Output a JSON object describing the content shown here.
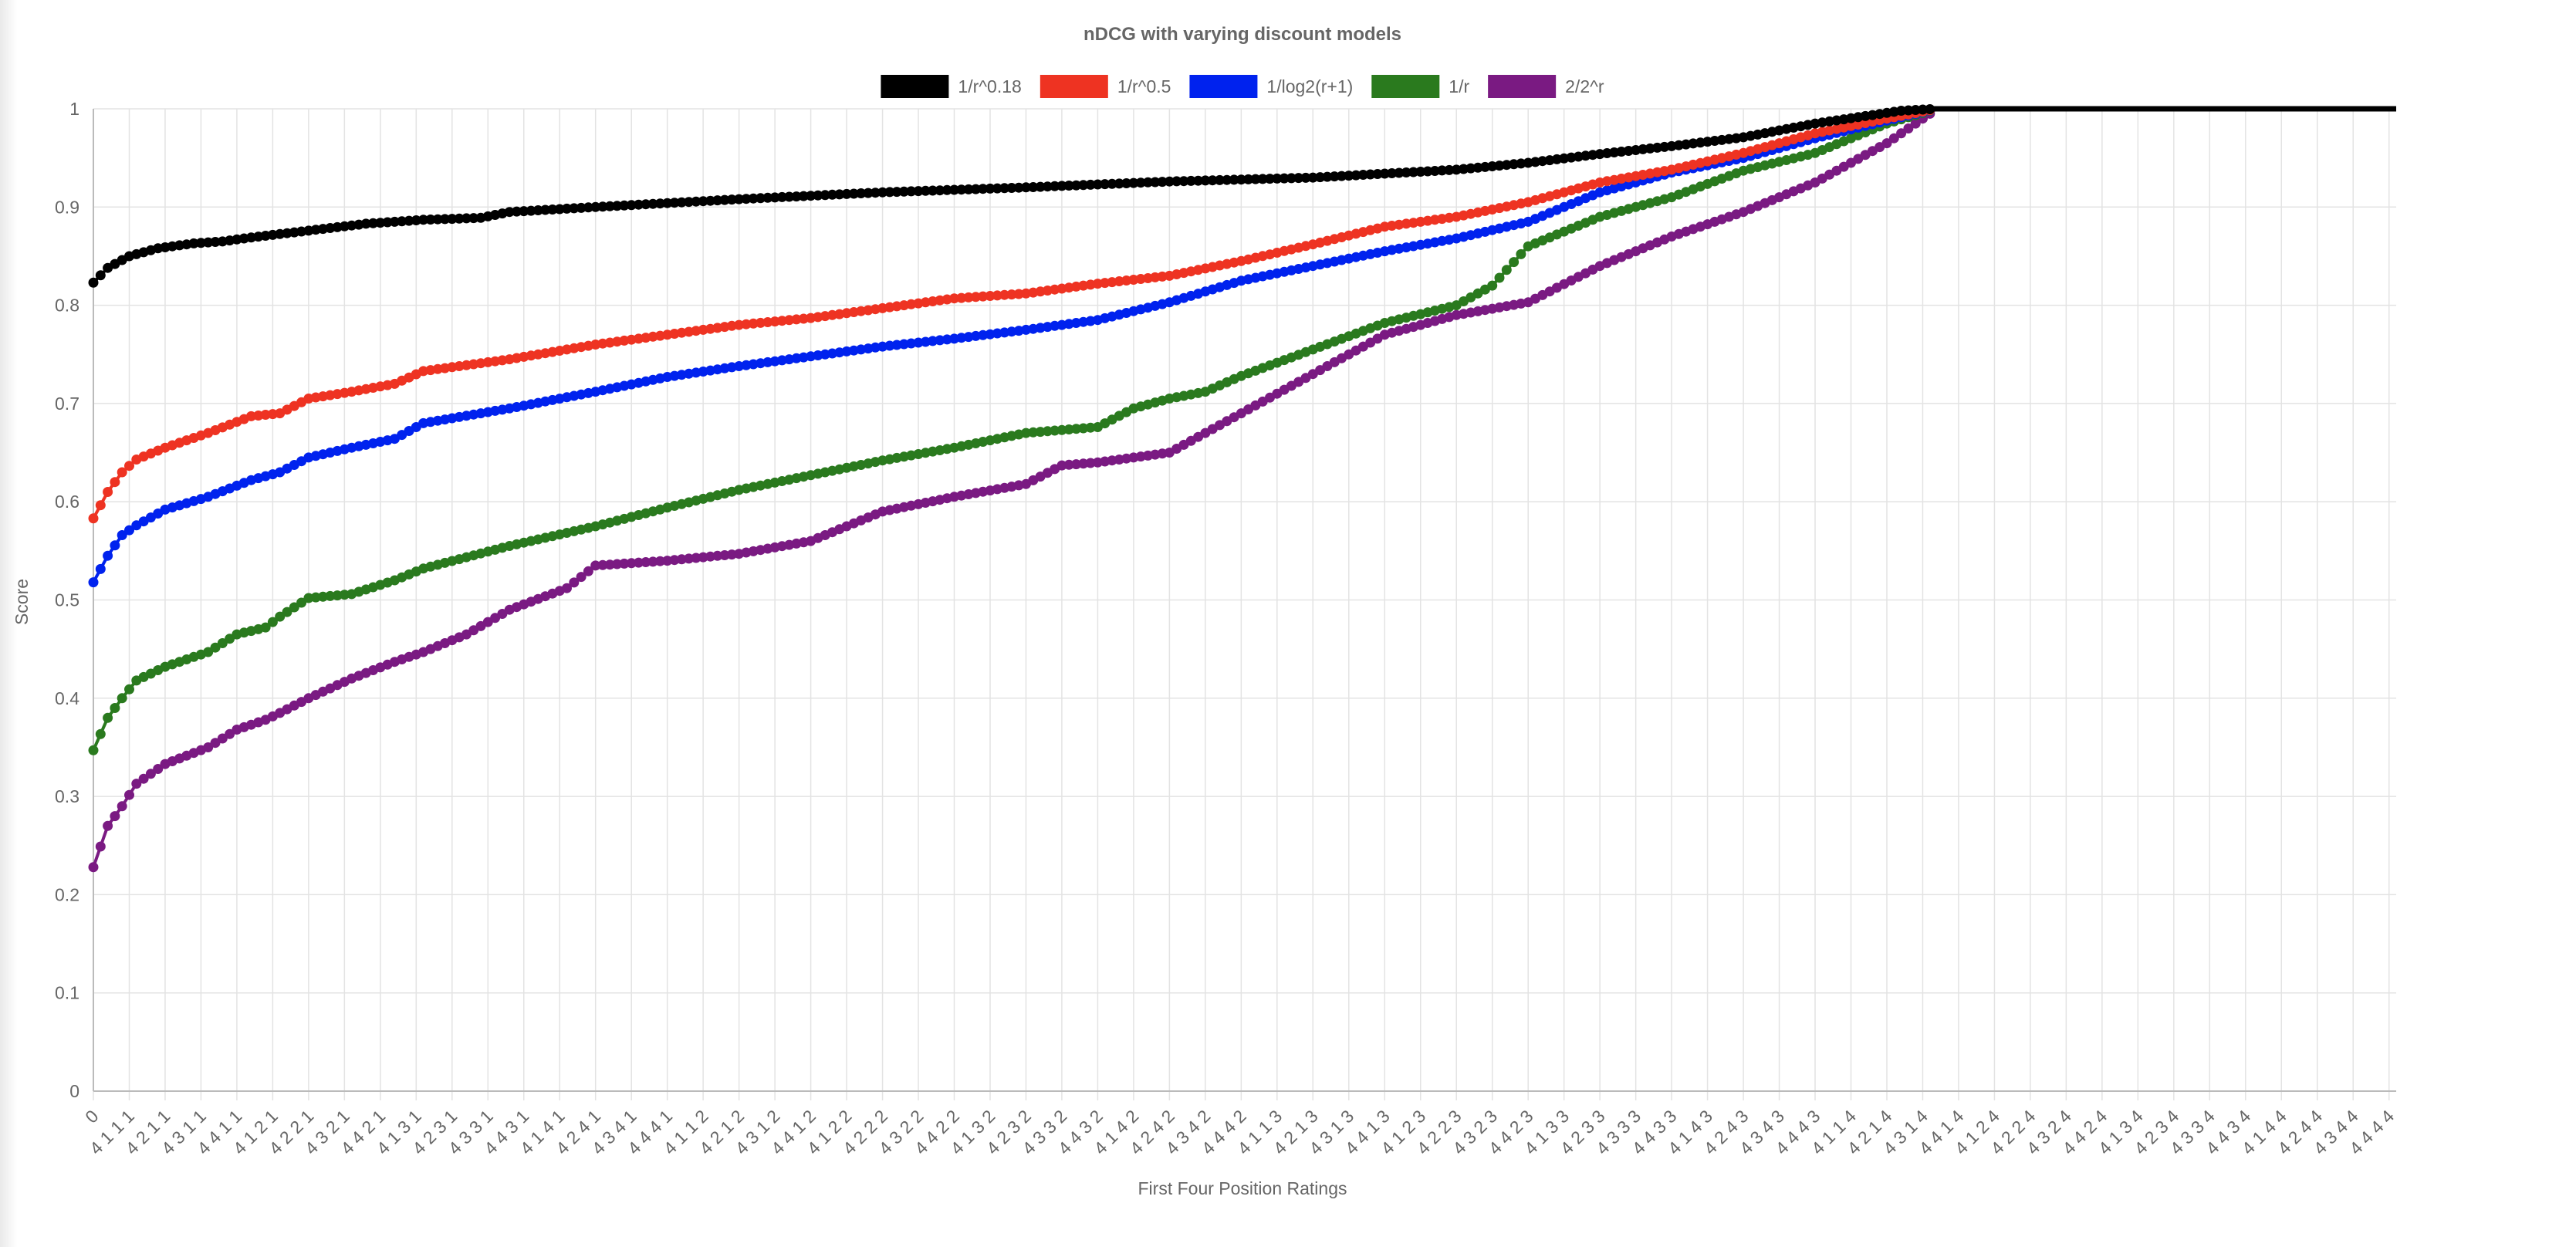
{
  "chart_data": {
    "type": "line",
    "title": "nDCG with varying discount models",
    "xlabel": "First Four Position Ratings",
    "ylabel": "Score",
    "ylim": [
      0,
      1
    ],
    "yticks": [
      "0",
      "0.1",
      "0.2",
      "0.3",
      "0.4",
      "0.5",
      "0.6",
      "0.7",
      "0.8",
      "0.9",
      "1"
    ],
    "x_tick_labels": [
      "0",
      "4 1 1 1",
      "4 2 1 1",
      "4 3 1 1",
      "4 4 1 1",
      "4 1 2 1",
      "4 2 2 1",
      "4 3 2 1",
      "4 4 2 1",
      "4 1 3 1",
      "4 2 3 1",
      "4 3 3 1",
      "4 4 3 1",
      "4 1 4 1",
      "4 2 4 1",
      "4 3 4 1",
      "4 4 4 1",
      "4 1 1 2",
      "4 2 1 2",
      "4 3 1 2",
      "4 4 1 2",
      "4 1 2 2",
      "4 2 2 2",
      "4 3 2 2",
      "4 4 2 2",
      "4 1 3 2",
      "4 2 3 2",
      "4 3 3 2",
      "4 4 3 2",
      "4 1 4 2",
      "4 2 4 2",
      "4 3 4 2",
      "4 4 4 2",
      "4 1 1 3",
      "4 2 1 3",
      "4 3 1 3",
      "4 4 1 3",
      "4 1 2 3",
      "4 2 2 3",
      "4 3 2 3",
      "4 4 2 3",
      "4 1 3 3",
      "4 2 3 3",
      "4 3 3 3",
      "4 4 3 3",
      "4 1 4 3",
      "4 2 4 3",
      "4 3 4 3",
      "4 4 4 3",
      "4 1 1 4",
      "4 2 1 4",
      "4 3 1 4",
      "4 4 1 4",
      "4 1 2 4",
      "4 2 2 4",
      "4 3 2 4",
      "4 4 2 4",
      "4 1 3 4",
      "4 2 3 4",
      "4 3 3 4",
      "4 4 3 4",
      "4 1 4 4",
      "4 2 4 4",
      "4 3 4 4",
      "4 4 4 4"
    ],
    "point_count": 257,
    "legend_position": "top",
    "grid": true,
    "series": [
      {
        "name": "1/r^0.18",
        "color": "#000000",
        "anchors": [
          [
            0,
            0.823
          ],
          [
            2,
            0.838
          ],
          [
            5,
            0.85
          ],
          [
            9,
            0.858
          ],
          [
            14,
            0.863
          ],
          [
            18,
            0.865
          ],
          [
            22,
            0.869
          ],
          [
            30,
            0.876
          ],
          [
            38,
            0.883
          ],
          [
            46,
            0.887
          ],
          [
            54,
            0.889
          ],
          [
            58,
            0.895
          ],
          [
            70,
            0.9
          ],
          [
            90,
            0.908
          ],
          [
            110,
            0.915
          ],
          [
            130,
            0.92
          ],
          [
            150,
            0.926
          ],
          [
            170,
            0.93
          ],
          [
            190,
            0.938
          ],
          [
            200,
            0.945
          ],
          [
            210,
            0.954
          ],
          [
            220,
            0.962
          ],
          [
            230,
            0.971
          ],
          [
            240,
            0.985
          ],
          [
            252,
            0.998
          ],
          [
            257,
            1
          ]
        ],
        "plateau_end": 321
      },
      {
        "name": "1/r^0.5",
        "color": "#ee3322",
        "anchors": [
          [
            0,
            0.583
          ],
          [
            2,
            0.61
          ],
          [
            4,
            0.63
          ],
          [
            6,
            0.643
          ],
          [
            10,
            0.655
          ],
          [
            16,
            0.67
          ],
          [
            22,
            0.687
          ],
          [
            26,
            0.69
          ],
          [
            30,
            0.705
          ],
          [
            36,
            0.712
          ],
          [
            42,
            0.72
          ],
          [
            46,
            0.733
          ],
          [
            58,
            0.745
          ],
          [
            70,
            0.76
          ],
          [
            80,
            0.77
          ],
          [
            90,
            0.78
          ],
          [
            100,
            0.787
          ],
          [
            110,
            0.797
          ],
          [
            120,
            0.807
          ],
          [
            130,
            0.812
          ],
          [
            140,
            0.822
          ],
          [
            150,
            0.83
          ],
          [
            160,
            0.845
          ],
          [
            170,
            0.862
          ],
          [
            180,
            0.88
          ],
          [
            190,
            0.89
          ],
          [
            200,
            0.905
          ],
          [
            210,
            0.925
          ],
          [
            220,
            0.938
          ],
          [
            230,
            0.955
          ],
          [
            240,
            0.975
          ],
          [
            250,
            0.99
          ],
          [
            257,
            1
          ]
        ]
      },
      {
        "name": "1/log2(r+1)",
        "color": "#0022ee",
        "anchors": [
          [
            0,
            0.518
          ],
          [
            2,
            0.545
          ],
          [
            4,
            0.566
          ],
          [
            6,
            0.576
          ],
          [
            10,
            0.592
          ],
          [
            16,
            0.605
          ],
          [
            22,
            0.622
          ],
          [
            26,
            0.63
          ],
          [
            30,
            0.645
          ],
          [
            36,
            0.655
          ],
          [
            42,
            0.664
          ],
          [
            46,
            0.68
          ],
          [
            58,
            0.695
          ],
          [
            70,
            0.712
          ],
          [
            80,
            0.727
          ],
          [
            90,
            0.738
          ],
          [
            100,
            0.748
          ],
          [
            110,
            0.758
          ],
          [
            120,
            0.766
          ],
          [
            130,
            0.775
          ],
          [
            140,
            0.785
          ],
          [
            150,
            0.803
          ],
          [
            160,
            0.825
          ],
          [
            170,
            0.84
          ],
          [
            180,
            0.855
          ],
          [
            190,
            0.868
          ],
          [
            200,
            0.885
          ],
          [
            210,
            0.915
          ],
          [
            220,
            0.935
          ],
          [
            230,
            0.95
          ],
          [
            240,
            0.97
          ],
          [
            250,
            0.988
          ],
          [
            257,
            1
          ]
        ]
      },
      {
        "name": "1/r",
        "color": "#2a7a1e",
        "anchors": [
          [
            0,
            0.347
          ],
          [
            2,
            0.38
          ],
          [
            4,
            0.4
          ],
          [
            6,
            0.418
          ],
          [
            10,
            0.432
          ],
          [
            16,
            0.447
          ],
          [
            20,
            0.465
          ],
          [
            24,
            0.472
          ],
          [
            26,
            0.483
          ],
          [
            30,
            0.502
          ],
          [
            36,
            0.506
          ],
          [
            42,
            0.52
          ],
          [
            46,
            0.532
          ],
          [
            58,
            0.555
          ],
          [
            70,
            0.575
          ],
          [
            80,
            0.594
          ],
          [
            90,
            0.612
          ],
          [
            100,
            0.627
          ],
          [
            110,
            0.642
          ],
          [
            120,
            0.655
          ],
          [
            130,
            0.67
          ],
          [
            140,
            0.676
          ],
          [
            145,
            0.695
          ],
          [
            150,
            0.705
          ],
          [
            155,
            0.712
          ],
          [
            160,
            0.728
          ],
          [
            170,
            0.755
          ],
          [
            180,
            0.782
          ],
          [
            190,
            0.8
          ],
          [
            195,
            0.82
          ],
          [
            200,
            0.86
          ],
          [
            210,
            0.89
          ],
          [
            220,
            0.91
          ],
          [
            230,
            0.937
          ],
          [
            240,
            0.955
          ],
          [
            250,
            0.985
          ],
          [
            257,
            1
          ]
        ]
      },
      {
        "name": "2/2^r",
        "color": "#7a1a82",
        "anchors": [
          [
            0,
            0.228
          ],
          [
            2,
            0.27
          ],
          [
            4,
            0.29
          ],
          [
            6,
            0.313
          ],
          [
            10,
            0.333
          ],
          [
            16,
            0.35
          ],
          [
            20,
            0.368
          ],
          [
            24,
            0.378
          ],
          [
            26,
            0.385
          ],
          [
            30,
            0.4
          ],
          [
            36,
            0.42
          ],
          [
            42,
            0.437
          ],
          [
            46,
            0.447
          ],
          [
            52,
            0.465
          ],
          [
            58,
            0.49
          ],
          [
            66,
            0.512
          ],
          [
            70,
            0.535
          ],
          [
            80,
            0.54
          ],
          [
            90,
            0.547
          ],
          [
            100,
            0.56
          ],
          [
            110,
            0.59
          ],
          [
            120,
            0.605
          ],
          [
            130,
            0.618
          ],
          [
            135,
            0.637
          ],
          [
            140,
            0.64
          ],
          [
            150,
            0.65
          ],
          [
            160,
            0.69
          ],
          [
            170,
            0.73
          ],
          [
            180,
            0.77
          ],
          [
            190,
            0.79
          ],
          [
            200,
            0.803
          ],
          [
            210,
            0.84
          ],
          [
            220,
            0.87
          ],
          [
            230,
            0.895
          ],
          [
            240,
            0.925
          ],
          [
            250,
            0.965
          ],
          [
            257,
            1
          ]
        ]
      }
    ]
  }
}
